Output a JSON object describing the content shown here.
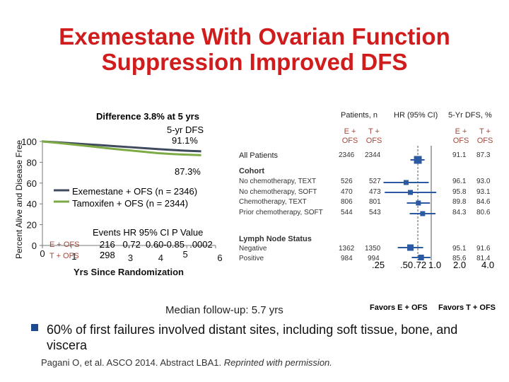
{
  "title_line1": "Exemestane With Ovarian Function",
  "title_line2": "Suppression Improved DFS",
  "km": {
    "ylabel": "Percent Alive and Disease Free",
    "xlabel": "Yrs Since Randomization",
    "difference_label": "Difference 3.8% at 5 yrs",
    "five_yr_label": "5-yr DFS",
    "exe_5yr": "91.1%",
    "tam_5yr": "87.3%",
    "legend_exe": "Exemestane + OFS (n = 2346)",
    "legend_tam": "Tamoxifen + OFS (n = 2344)",
    "stats_header": "Events  HR   95% CI  P Value",
    "exe_row_label": "E + OFS",
    "tam_row_label": "T + OFS",
    "exe_stats": "216   0.72  0.60-0.85  .0002",
    "tam_stats": "298",
    "median_followup": "Median follow-up: 5.7 yrs",
    "colors": {
      "exe": "#3f4a5e",
      "tam": "#7daa45",
      "axis": "#777777"
    }
  },
  "forest": {
    "col_patients": "Patients, n",
    "col_hr": "HR (95% CI)",
    "col_dfs": "5-Yr DFS, %",
    "sub_e": "E + OFS",
    "sub_t": "T + OFS",
    "favors_e": "Favors E + OFS",
    "favors_t": "Favors T + OFS",
    "marker_color": "#2b5aa3",
    "groups": [
      {
        "header": "All Patients",
        "rows": [
          {
            "label": "",
            "n_e": "2346",
            "n_t": "2344",
            "dfs_e": "91.1",
            "dfs_t": "87.3",
            "hr": 0.72,
            "lo": 0.6,
            "hi": 0.85
          }
        ]
      },
      {
        "header": "Cohort",
        "rows": [
          {
            "label": "No chemotherapy, TEXT",
            "n_e": "526",
            "n_t": "527",
            "dfs_e": "96.1",
            "dfs_t": "93.0",
            "hr": 0.54,
            "lo": 0.31,
            "hi": 0.94
          },
          {
            "label": "No chemotherapy, SOFT",
            "n_e": "470",
            "n_t": "473",
            "dfs_e": "95.8",
            "dfs_t": "93.1",
            "hr": 0.6,
            "lo": 0.32,
            "hi": 1.13
          },
          {
            "label": "Chemotherapy, TEXT",
            "n_e": "806",
            "n_t": "801",
            "dfs_e": "89.8",
            "dfs_t": "84.6",
            "hr": 0.73,
            "lo": 0.55,
            "hi": 0.97
          },
          {
            "label": "Prior chemotherapy, SOFT",
            "n_e": "544",
            "n_t": "543",
            "dfs_e": "84.3",
            "dfs_t": "80.6",
            "hr": 0.81,
            "lo": 0.59,
            "hi": 1.11
          }
        ]
      },
      {
        "header": "Lymph Node Status",
        "rows": [
          {
            "label": "Negative",
            "n_e": "1362",
            "n_t": "1350",
            "dfs_e": "95.1",
            "dfs_t": "91.6",
            "hr": 0.6,
            "lo": 0.44,
            "hi": 0.82
          },
          {
            "label": "Positive",
            "n_e": "984",
            "n_t": "994",
            "dfs_e": "85.6",
            "dfs_t": "81.4",
            "hr": 0.78,
            "lo": 0.62,
            "hi": 0.98
          }
        ]
      }
    ]
  },
  "chart_data": [
    {
      "type": "line",
      "ylabel": "Percent Alive and Disease Free",
      "xlabel": "Yrs Since Randomization",
      "xlim": [
        0,
        6
      ],
      "ylim": [
        0,
        100
      ],
      "xticks": [
        0,
        1,
        2,
        3,
        4,
        5,
        6
      ],
      "yticks": [
        0,
        20,
        40,
        60,
        80,
        100
      ],
      "series": [
        {
          "name": "Exemestane + OFS (n = 2346)",
          "x": [
            0,
            0.5,
            1,
            1.5,
            2,
            2.5,
            3,
            3.5,
            4,
            4.5,
            5,
            5.5
          ],
          "y": [
            100,
            99.2,
            98.3,
            97.4,
            96.5,
            95.5,
            94.6,
            93.6,
            92.7,
            91.8,
            91.1,
            90.6
          ]
        },
        {
          "name": "Tamoxifen + OFS (n = 2344)",
          "x": [
            0,
            0.5,
            1,
            1.5,
            2,
            2.5,
            3,
            3.5,
            4,
            4.5,
            5,
            5.5
          ],
          "y": [
            100,
            98.7,
            97.3,
            95.8,
            94.3,
            92.8,
            91.5,
            90.1,
            88.8,
            87.9,
            87.3,
            86.8
          ]
        }
      ]
    },
    {
      "type": "forest",
      "xscale": "log",
      "xticks": [
        ".25",
        ".50",
        ".72",
        "1.0",
        "2.0",
        "4.0"
      ],
      "xtick_values": [
        0.25,
        0.5,
        0.72,
        1.0,
        2.0,
        4.0
      ]
    }
  ],
  "bullet_text": "60% of first failures involved distant sites, including soft tissue, bone, and viscera",
  "citation_main": "Pagani O, et al. ASCO 2014. Abstract LBA1. ",
  "citation_italic": "Reprinted with permission."
}
